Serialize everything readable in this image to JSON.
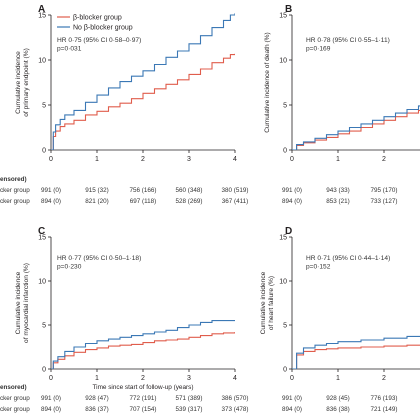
{
  "colors": {
    "bblocker": "#e05d4c",
    "no_bblocker": "#3b78b5",
    "axis": "#231f20"
  },
  "legend": {
    "bblocker_label": "β-blocker group",
    "no_bblocker_label": "No β-blocker group"
  },
  "xaxis_label": "Time since start of follow-up (years)",
  "risk_table": {
    "header_label": "ensored)",
    "row_labels": [
      "cker group",
      "cker group"
    ]
  },
  "chart_data": [
    {
      "panel": "A",
      "type": "line",
      "ylabel_lines": [
        "Cumulative incidence",
        "of primary endpoint (%)"
      ],
      "ylim": [
        0,
        15
      ],
      "yticks": [
        0,
        5,
        10,
        15
      ],
      "xlim": [
        0,
        4
      ],
      "xticks": [
        0,
        1,
        2,
        3,
        4
      ],
      "stat_lines": [
        "HR 0·75 (95% CI 0·58–0·97)",
        "p=0·031"
      ],
      "legend": "top-left",
      "series": [
        {
          "name": "β-blocker group",
          "x": [
            0,
            0.05,
            0.1,
            0.2,
            0.3,
            0.5,
            0.75,
            1.0,
            1.25,
            1.5,
            1.75,
            2.0,
            2.25,
            2.5,
            2.75,
            3.0,
            3.25,
            3.5,
            3.75,
            3.9,
            4.0
          ],
          "y": [
            0,
            1.5,
            2.1,
            2.6,
            2.9,
            3.3,
            3.9,
            4.3,
            4.8,
            5.2,
            5.7,
            6.3,
            6.8,
            7.3,
            7.8,
            8.4,
            9.0,
            9.7,
            10.2,
            10.6,
            10.7
          ]
        },
        {
          "name": "No β-blocker group",
          "x": [
            0,
            0.05,
            0.1,
            0.2,
            0.3,
            0.5,
            0.75,
            1.0,
            1.25,
            1.5,
            1.75,
            2.0,
            2.25,
            2.5,
            2.75,
            3.0,
            3.25,
            3.5,
            3.75,
            3.9,
            4.0
          ],
          "y": [
            0,
            2.0,
            2.8,
            3.4,
            3.9,
            4.4,
            5.3,
            6.1,
            6.9,
            7.6,
            8.2,
            8.8,
            9.5,
            10.3,
            11.0,
            11.8,
            12.7,
            13.6,
            14.4,
            15.0,
            15.2
          ]
        }
      ],
      "risk_rows": [
        [
          "991 (0)",
          "915 (32)",
          "756 (166)",
          "560 (348)",
          "380 (519)"
        ],
        [
          "894 (0)",
          "821 (20)",
          "697 (118)",
          "528 (269)",
          "367 (411)"
        ]
      ]
    },
    {
      "panel": "B",
      "type": "line",
      "ylabel_lines": [
        "Cumulative incidence of death (%)"
      ],
      "ylim": [
        0,
        15
      ],
      "yticks": [
        0,
        5,
        10,
        15
      ],
      "xlim": [
        0,
        4
      ],
      "xticks": [
        0,
        1,
        2,
        3,
        4
      ],
      "stat_lines": [
        "HR 0·78 (95% CI 0·55–1·11)",
        "p=0·169"
      ],
      "series": [
        {
          "name": "β-blocker group",
          "x": [
            0,
            0.1,
            0.25,
            0.5,
            0.75,
            1.0,
            1.25,
            1.5,
            1.75,
            2.0,
            2.25,
            2.5,
            2.75,
            3.0
          ],
          "y": [
            0,
            0.5,
            0.8,
            1.1,
            1.4,
            1.8,
            2.1,
            2.5,
            2.9,
            3.3,
            3.7,
            4.1,
            4.4,
            4.6
          ]
        },
        {
          "name": "No β-blocker group",
          "x": [
            0,
            0.1,
            0.25,
            0.5,
            0.75,
            1.0,
            1.25,
            1.5,
            1.75,
            2.0,
            2.25,
            2.5,
            2.75,
            3.0
          ],
          "y": [
            0,
            0.6,
            0.9,
            1.3,
            1.7,
            2.1,
            2.5,
            2.9,
            3.3,
            3.7,
            4.1,
            4.5,
            4.9,
            5.2
          ]
        }
      ],
      "risk_rows": [
        [
          "991 (0)",
          "943 (33)",
          "795 (170)",
          "5"
        ],
        [
          "894 (0)",
          "853 (21)",
          "733 (127)",
          "5"
        ]
      ]
    },
    {
      "panel": "C",
      "type": "line",
      "ylabel_lines": [
        "Cumulative incidence",
        "of myocardial infarction (%)"
      ],
      "ylim": [
        0,
        15
      ],
      "yticks": [
        0,
        5,
        10,
        15
      ],
      "xlim": [
        0,
        4
      ],
      "xticks": [
        0,
        1,
        2,
        3,
        4
      ],
      "stat_lines": [
        "HR 0·77 (95% CI 0·50–1·18)",
        "p=0·230"
      ],
      "series": [
        {
          "name": "β-blocker group",
          "x": [
            0,
            0.05,
            0.15,
            0.3,
            0.5,
            0.75,
            1.0,
            1.25,
            1.5,
            1.75,
            2.0,
            2.25,
            2.5,
            2.75,
            3.0,
            3.25,
            3.5,
            3.75,
            4.0
          ],
          "y": [
            0,
            0.7,
            1.1,
            1.5,
            1.9,
            2.2,
            2.4,
            2.6,
            2.7,
            2.8,
            3.0,
            3.2,
            3.3,
            3.4,
            3.6,
            3.8,
            4.0,
            4.1,
            4.2
          ]
        },
        {
          "name": "No β-blocker group",
          "x": [
            0,
            0.05,
            0.15,
            0.3,
            0.5,
            0.75,
            1.0,
            1.25,
            1.5,
            1.75,
            2.0,
            2.25,
            2.5,
            2.75,
            3.0,
            3.25,
            3.5,
            3.75,
            4.0
          ],
          "y": [
            0,
            0.9,
            1.4,
            2.0,
            2.5,
            2.9,
            3.2,
            3.4,
            3.6,
            3.8,
            4.0,
            4.2,
            4.4,
            4.7,
            5.0,
            5.3,
            5.5,
            5.5,
            5.5
          ]
        }
      ],
      "risk_rows": [
        [
          "991 (0)",
          "928 (47)",
          "772 (191)",
          "571 (389)",
          "386 (570)"
        ],
        [
          "894 (0)",
          "836 (37)",
          "707 (154)",
          "539 (317)",
          "373 (478)"
        ]
      ]
    },
    {
      "panel": "D",
      "type": "line",
      "ylabel_lines": [
        "Cumulative incidence",
        "of heart failure (%)"
      ],
      "ylim": [
        0,
        15
      ],
      "yticks": [
        0,
        5,
        10,
        15
      ],
      "xlim": [
        0,
        4
      ],
      "xticks": [
        0,
        1,
        2,
        3,
        4
      ],
      "stat_lines": [
        "HR 0·71 (95% CI 0·44–1·14)",
        "p=0·152"
      ],
      "series": [
        {
          "name": "β-blocker group",
          "x": [
            0,
            0.1,
            0.25,
            0.5,
            0.75,
            1.0,
            1.5,
            2.0,
            2.5,
            3.0
          ],
          "y": [
            0,
            1.6,
            2.0,
            2.2,
            2.3,
            2.4,
            2.5,
            2.6,
            2.7,
            2.8
          ]
        },
        {
          "name": "No β-blocker group",
          "x": [
            0,
            0.1,
            0.25,
            0.5,
            0.75,
            1.0,
            1.5,
            2.0,
            2.5,
            3.0
          ],
          "y": [
            0,
            1.8,
            2.4,
            2.7,
            2.9,
            3.1,
            3.3,
            3.5,
            3.7,
            4.0
          ]
        }
      ],
      "risk_rows": [
        [
          "991 (0)",
          "928 (45)",
          "776 (193)",
          "5"
        ],
        [
          "894 (0)",
          "836 (38)",
          "721 (149)",
          "5"
        ]
      ]
    }
  ]
}
